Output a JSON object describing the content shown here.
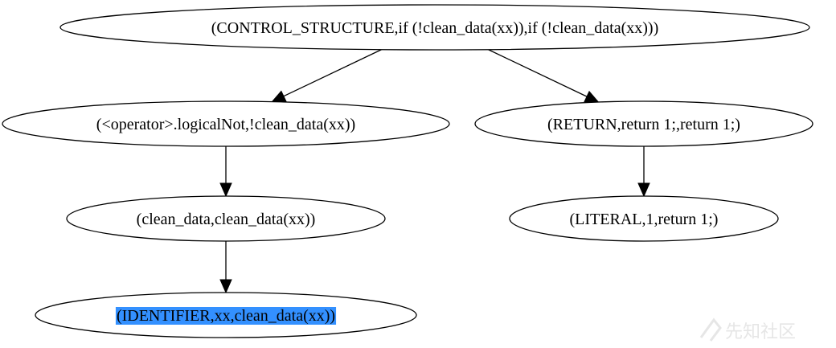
{
  "graph": {
    "nodes": [
      {
        "id": "n_control",
        "label": "(CONTROL_STRUCTURE,if (!clean_data(xx)),if (!clean_data(xx)))"
      },
      {
        "id": "n_not",
        "label": "(<operator>.logicalNot,!clean_data(xx))"
      },
      {
        "id": "n_return",
        "label": "(RETURN,return 1;,return 1;)"
      },
      {
        "id": "n_call",
        "label": "(clean_data,clean_data(xx))"
      },
      {
        "id": "n_literal",
        "label": "(LITERAL,1,return 1;)"
      },
      {
        "id": "n_ident",
        "label": "(IDENTIFIER,xx,clean_data(xx))",
        "selected": true
      }
    ],
    "edges": [
      {
        "from": "n_control",
        "to": "n_not"
      },
      {
        "from": "n_control",
        "to": "n_return"
      },
      {
        "from": "n_not",
        "to": "n_call"
      },
      {
        "from": "n_return",
        "to": "n_literal"
      },
      {
        "from": "n_call",
        "to": "n_ident"
      }
    ],
    "selection_color": "#3390ff"
  },
  "watermark": {
    "text": "先知社区"
  }
}
